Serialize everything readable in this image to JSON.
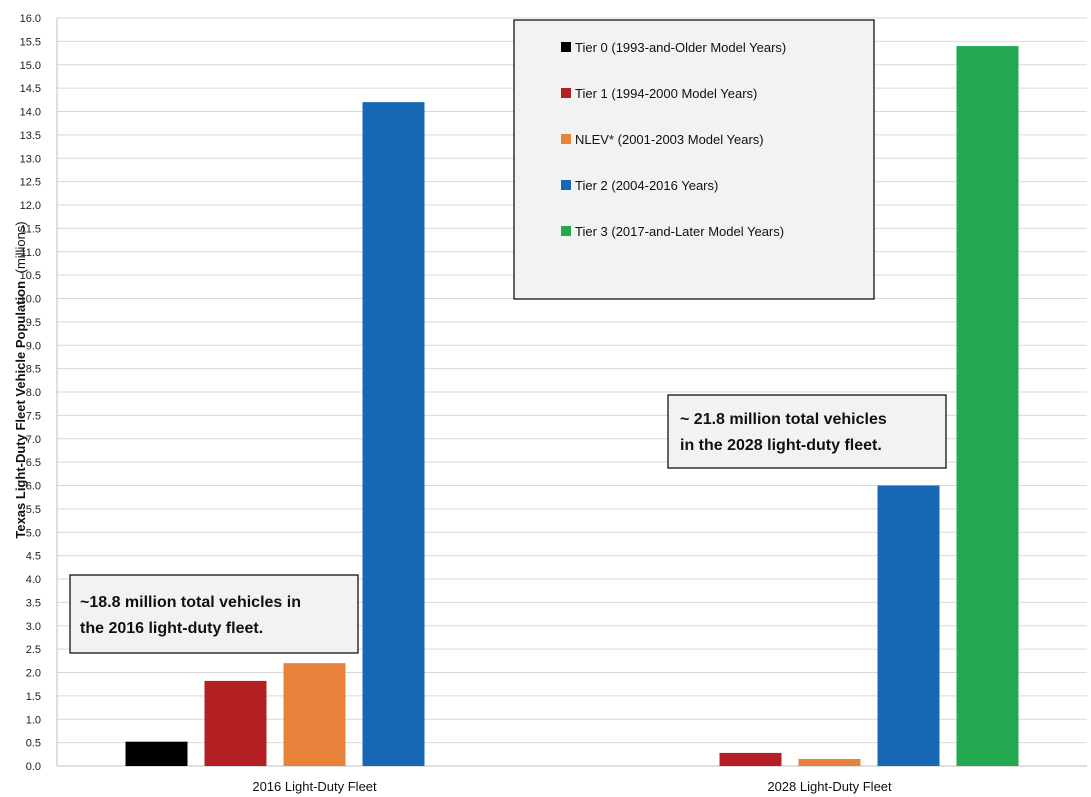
{
  "chart_data": {
    "type": "bar",
    "ylabel": "Texas Light-Duty Fleet Vehicle Population",
    "ylabel_unit": "(millions)",
    "ylim": [
      0,
      16
    ],
    "ytick_step": 0.5,
    "grid": true,
    "categories": [
      "2016 Light-Duty Fleet",
      "2028 Light-Duty Fleet"
    ],
    "series": [
      {
        "name": "Tier 0 (1993-and-Older Model Years)",
        "color": "#000000",
        "values": [
          0.52,
          0
        ]
      },
      {
        "name": "Tier 1 (1994-2000 Model Years)",
        "color": "#b41f24",
        "values": [
          1.82,
          0.28
        ]
      },
      {
        "name": "NLEV* (2001-2003 Model Years)",
        "color": "#e8823a",
        "values": [
          2.2,
          0.15
        ]
      },
      {
        "name": "Tier 2 (2004-2016 Years)",
        "color": "#1668b4",
        "values": [
          14.2,
          6.0
        ]
      },
      {
        "name": "Tier 3 (2017-and-Later Model Years)",
        "color": "#22a84f",
        "values": [
          0,
          15.4
        ]
      }
    ],
    "legend_position": "top-center",
    "annotations": [
      {
        "id": "annot-2016",
        "lines": [
          "~18.8 million total vehicles in",
          "the 2016 light-duty fleet."
        ]
      },
      {
        "id": "annot-2028",
        "lines": [
          "~ 21.8 million total vehicles",
          "in the 2028 light-duty fleet."
        ]
      }
    ]
  }
}
